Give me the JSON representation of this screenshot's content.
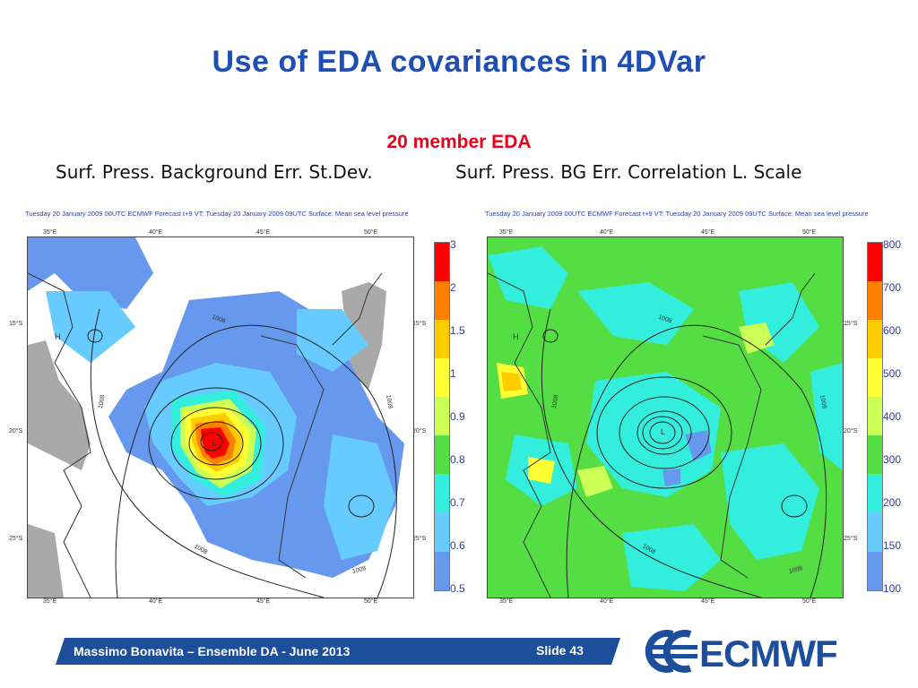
{
  "slide": {
    "title": "Use of EDA covariances in 4DVar",
    "subtitle": "20 member EDA",
    "caption_left": "Surf. Press. Background Err. St.Dev.",
    "caption_right": "Surf. Press. BG Err. Correlation L. Scale"
  },
  "left_map": {
    "header": "Tuesday 20 January 2009 00UTC ECMWF  Forecast t+9 VT: Tuesday 20 January 2009 09UTC Surface: Mean sea level pressure",
    "lon_ticks": [
      "35°E",
      "40°E",
      "45°E",
      "50°E"
    ],
    "lat_ticks": [
      "15°S",
      "20°S",
      "25°S"
    ],
    "contour_labels": [
      "1008",
      "1008",
      "1008",
      "1008",
      "1008"
    ],
    "high_label": "H",
    "low_label": "L",
    "colorbar": [
      "3",
      "2",
      "1.5",
      "1",
      "0.9",
      "0.8",
      "0.7",
      "0.6",
      "0.5"
    ],
    "colorbar_colors": [
      "#ff0000",
      "#ff7f00",
      "#ffcc00",
      "#ffff33",
      "#ccff55",
      "#55dd44",
      "#33eedd",
      "#66ccff",
      "#6699ee"
    ]
  },
  "right_map": {
    "header": "Tuesday 20 January 2009 00UTC ECMWF  Forecast t+9 VT: Tuesday 20 January 2009 09UTC Surface: Mean sea level pressure",
    "lon_ticks": [
      "35°E",
      "40°E",
      "45°E",
      "50°E"
    ],
    "lat_ticks": [
      "15°S",
      "20°S",
      "25°S"
    ],
    "contour_labels": [
      "1008",
      "1008",
      "1008",
      "1008",
      "1008"
    ],
    "high_label": "H",
    "low_label": "L",
    "colorbar": [
      "800",
      "700",
      "600",
      "500",
      "400",
      "300",
      "200",
      "150",
      "100"
    ],
    "colorbar_colors": [
      "#ff0000",
      "#ff7f00",
      "#ffcc00",
      "#ffff33",
      "#ccff55",
      "#55dd44",
      "#33eedd",
      "#66ccff",
      "#6699ee"
    ]
  },
  "footer": {
    "presenter": "Massimo Bonavita –  Ensemble DA - June 2013",
    "slide_number": "Slide 43",
    "bar_color": "#1c4e9c"
  },
  "logo": {
    "text": "ECMWF",
    "icon": "ecmwf-logo-icon"
  }
}
